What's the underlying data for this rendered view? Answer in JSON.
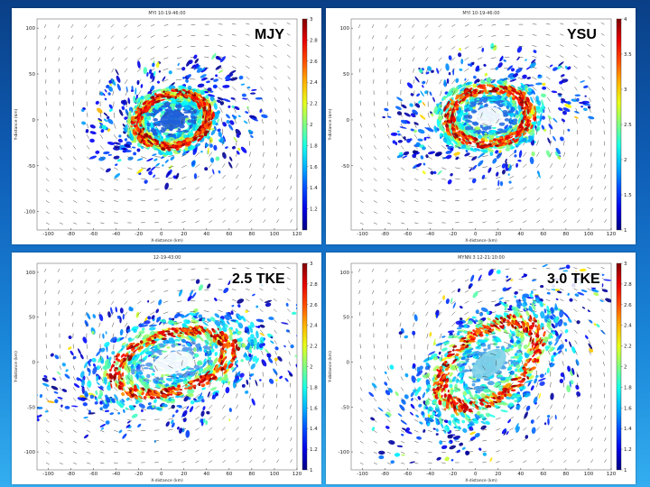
{
  "chart_data": [
    {
      "type": "heatmap",
      "label": "MJY",
      "title": "MYI 10-19-46:00",
      "xlabel": "X-distance (km)",
      "ylabel": "Y-distance (km)",
      "xticks": [
        "-100",
        "-80",
        "-60",
        "-40",
        "-20",
        "0",
        "20",
        "40",
        "60",
        "80",
        "100",
        "120"
      ],
      "yticks": [
        "100",
        "50",
        "0",
        "-50",
        "-100"
      ],
      "colorbar_ticks": [
        "3",
        "2.8",
        "2.6",
        "2.4",
        "2.2",
        "2",
        "1.8",
        "1.6",
        "1.4",
        "1.2"
      ],
      "colorbar_range": [
        1,
        3
      ],
      "ring": {
        "cx": 10,
        "cy": 0,
        "rx": 32,
        "ry": 28,
        "rot": -10,
        "spread": 1.0,
        "inner_color": "#1f5fd8",
        "eye_color": "#1f5fd8"
      }
    },
    {
      "type": "heatmap",
      "label": "YSU",
      "title": "MYI 10-19-46:00",
      "xlabel": "X-distance (km)",
      "ylabel": "Y-distance (km)",
      "xticks": [
        "-100",
        "-80",
        "-60",
        "-40",
        "-20",
        "0",
        "20",
        "40",
        "60",
        "80",
        "100",
        "120"
      ],
      "yticks": [
        "100",
        "50",
        "0",
        "-50"
      ],
      "colorbar_ticks": [
        "4",
        "3.5",
        "3",
        "2.5",
        "2",
        "1.5",
        "1"
      ],
      "colorbar_range": [
        1,
        4
      ],
      "ring": {
        "cx": 12,
        "cy": 4,
        "rx": 36,
        "ry": 30,
        "rot": -5,
        "spread": 1.1,
        "inner_color": "#2a70e0",
        "eye_color": "#ffffff"
      }
    },
    {
      "type": "heatmap",
      "label": "2.5 TKE",
      "title": "12-19-43:00",
      "xlabel": "X-distance (km)",
      "ylabel": "Y-distance (km)",
      "xticks": [
        "-100",
        "-80",
        "-60",
        "-40",
        "-20",
        "0",
        "20",
        "40",
        "60",
        "80",
        "100",
        "120"
      ],
      "yticks": [
        "100",
        "50",
        "0",
        "-50",
        "-100"
      ],
      "colorbar_ticks": [
        "3",
        "2.8",
        "2.6",
        "2.4",
        "2.2",
        "2",
        "1.8",
        "1.6",
        "1.4",
        "1.2",
        "1"
      ],
      "colorbar_range": [
        1,
        3
      ],
      "ring": {
        "cx": 10,
        "cy": 0,
        "rx": 52,
        "ry": 32,
        "rot": -15,
        "spread": 1.4,
        "inner_color": "#5a9be8",
        "eye_color": "#ffffff"
      }
    },
    {
      "type": "heatmap",
      "label": "3.0 TKE",
      "title": "MYNN 3 12-21:10:00",
      "xlabel": "X-distance (km)",
      "ylabel": "Y-distance (km)",
      "xticks": [
        "-100",
        "-80",
        "-60",
        "-40",
        "-20",
        "0",
        "20",
        "40",
        "60",
        "80",
        "100",
        "120"
      ],
      "yticks": [
        "100",
        "50",
        "0",
        "-50",
        "-100"
      ],
      "colorbar_ticks": [
        "3",
        "2.8",
        "2.6",
        "2.4",
        "2.2",
        "2",
        "1.8",
        "1.6",
        "1.4",
        "1.2",
        "1"
      ],
      "colorbar_range": [
        1,
        3
      ],
      "ring": {
        "cx": 12,
        "cy": -2,
        "rx": 50,
        "ry": 36,
        "rot": -38,
        "spread": 1.4,
        "inner_color": "#4aa0e6",
        "eye_color": "#7fd0e8"
      }
    }
  ]
}
